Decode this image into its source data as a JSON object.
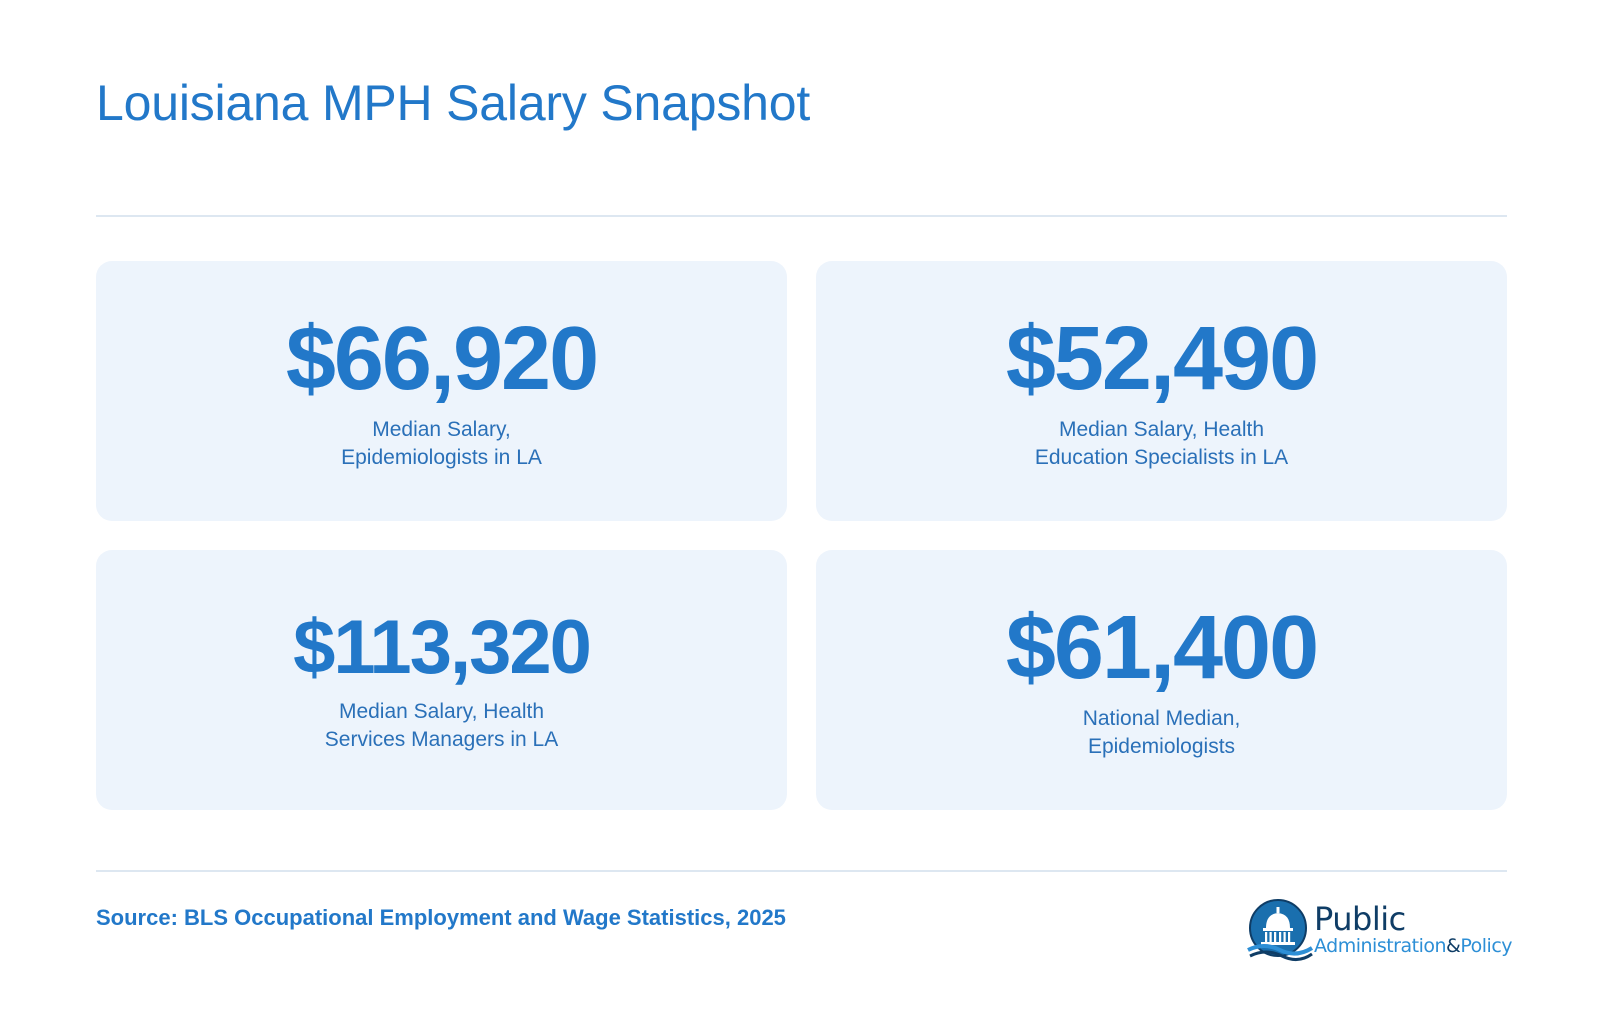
{
  "header": {
    "title": "Louisiana MPH Salary Snapshot"
  },
  "stats": [
    {
      "value": "$66,920",
      "label": "Median Salary,\nEpidemiologists in LA"
    },
    {
      "value": "$52,490",
      "label": "Median Salary, Health\nEducation Specialists in LA"
    },
    {
      "value": "$113,320",
      "label": "Median Salary, Health\nServices Managers in LA"
    },
    {
      "value": "$61,400",
      "label": "National Median,\nEpidemiologists"
    }
  ],
  "footer": {
    "source": "Source: BLS Occupational Employment and Wage Statistics, 2025",
    "logo": {
      "line1": "Public",
      "line2a": "Administration",
      "amp": "&",
      "line2b": "Policy",
      "icon": "capitol-dome-icon"
    }
  },
  "colors": {
    "accent": "#2278c9",
    "card_bg": "#edf4fc",
    "logo_dark": "#0f3d66",
    "logo_light": "#2d8fd6"
  }
}
